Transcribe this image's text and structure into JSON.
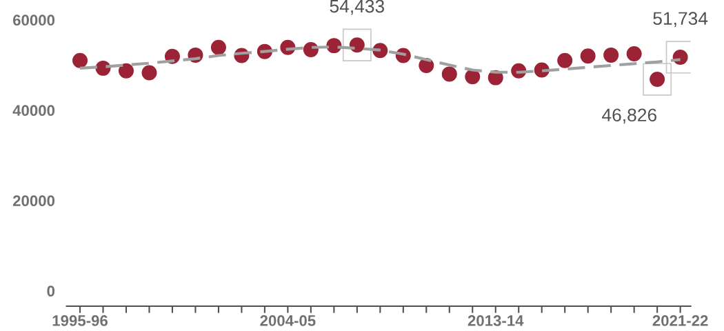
{
  "chart_data": {
    "type": "scatter",
    "categories": [
      "1995-96",
      null,
      null,
      null,
      null,
      null,
      null,
      null,
      null,
      "2004-05",
      null,
      null,
      null,
      null,
      null,
      null,
      null,
      null,
      "2013-14",
      null,
      null,
      null,
      null,
      null,
      null,
      null,
      "2021-22"
    ],
    "series": [
      {
        "type": "line",
        "color": "#a0a0a0",
        "line_style": "dashed",
        "marker": "none",
        "values": [
          49300,
          49600,
          50000,
          50400,
          50900,
          51400,
          52100,
          52600,
          53000,
          53500,
          53900,
          54000,
          53700,
          53300,
          52400,
          51200,
          50000,
          48900,
          48400,
          48400,
          48700,
          49100,
          49500,
          49900,
          50300,
          50700,
          51200
        ]
      },
      {
        "color": "#9b2335",
        "marker": "circle",
        "values": [
          51000,
          49300,
          48700,
          48300,
          51900,
          52200,
          53900,
          52100,
          53000,
          53900,
          53400,
          54300,
          54433,
          53200,
          52100,
          49900,
          48000,
          47400,
          47200,
          48700,
          48900,
          51000,
          52000,
          52200,
          52500,
          46826,
          51734
        ],
        "value_labels": [
          null,
          null,
          null,
          null,
          null,
          null,
          null,
          null,
          null,
          null,
          null,
          null,
          "54,433",
          null,
          null,
          null,
          null,
          null,
          null,
          null,
          null,
          null,
          null,
          null,
          null,
          "46,826",
          "51,734"
        ]
      }
    ],
    "ylim": [
      -3400,
      60000
    ],
    "yticks": [
      0,
      20000,
      40000,
      60000
    ],
    "grid": false
  }
}
